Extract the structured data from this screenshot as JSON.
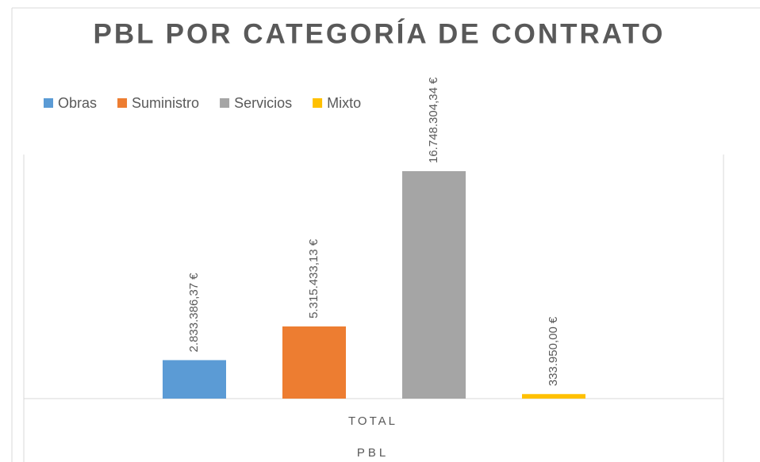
{
  "chart_data": {
    "type": "bar",
    "title": "PBL POR CATEGORÍA DE CONTRATO",
    "x_label": "PBL",
    "categories": [
      "TOTAL"
    ],
    "series": [
      {
        "name": "Obras",
        "color": "#5b9bd5",
        "values": [
          2833386.37
        ],
        "value_labels": [
          "2.833.386,37 €"
        ]
      },
      {
        "name": "Suministro",
        "color": "#ed7d31",
        "values": [
          5315433.13
        ],
        "value_labels": [
          "5.315.433,13 €"
        ]
      },
      {
        "name": "Servicios",
        "color": "#a5a5a5",
        "values": [
          16748304.34
        ],
        "value_labels": [
          "16.748.304,34 €"
        ]
      },
      {
        "name": "Mixto",
        "color": "#ffc000",
        "values": [
          333950.0
        ],
        "value_labels": [
          "333.950,00 €"
        ]
      }
    ],
    "legend": "top-left"
  }
}
